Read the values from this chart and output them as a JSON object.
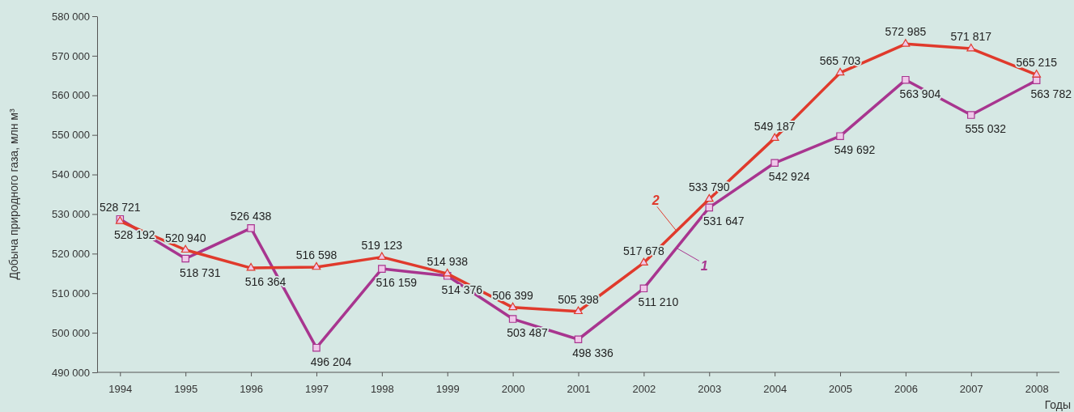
{
  "chart_data": {
    "type": "line",
    "xlabel": "Годы",
    "ylabel": "Добыча природного газа, млн м³",
    "categories": [
      "1994",
      "1995",
      "1996",
      "1997",
      "1998",
      "1999",
      "2000",
      "2001",
      "2002",
      "2003",
      "2004",
      "2005",
      "2006",
      "2007",
      "2008"
    ],
    "series": [
      {
        "name": "1",
        "color": "#a8358f",
        "marker": "square",
        "values": [
          528721,
          518731,
          526438,
          496204,
          516159,
          514376,
          503487,
          498336,
          511210,
          531647,
          542924,
          549692,
          563904,
          555032,
          563782
        ],
        "value_labels": [
          "528 721",
          "518 731",
          "526 438",
          "496 204",
          "516 159",
          "514 376",
          "503 487",
          "498 336",
          "511 210",
          "531 647",
          "542 924",
          "549 692",
          "563 904",
          "555 032",
          "563 782"
        ]
      },
      {
        "name": "2",
        "color": "#e03a2c",
        "marker": "triangle",
        "values": [
          528192,
          520940,
          516364,
          516598,
          519123,
          514938,
          506399,
          505398,
          517678,
          533790,
          549187,
          565703,
          572985,
          571817,
          565215
        ],
        "value_labels": [
          "528 192",
          "520 940",
          "516 364",
          "516 598",
          "519 123",
          "514 938",
          "506 399",
          "505 398",
          "517 678",
          "533 790",
          "549 187",
          "565 703",
          "572 985",
          "571 817",
          "565 215"
        ]
      }
    ],
    "ylim": [
      490000,
      580000
    ],
    "yticks": [
      {
        "value": 490000,
        "label": "490 000"
      },
      {
        "value": 500000,
        "label": "500 000"
      },
      {
        "value": 510000,
        "label": "510 000"
      },
      {
        "value": 520000,
        "label": "520 000"
      },
      {
        "value": 530000,
        "label": "530 000"
      },
      {
        "value": 540000,
        "label": "540 000"
      },
      {
        "value": 550000,
        "label": "550 000"
      },
      {
        "value": 560000,
        "label": "560 000"
      },
      {
        "value": 570000,
        "label": "570 000"
      },
      {
        "value": 580000,
        "label": "580 000"
      }
    ],
    "grid": false,
    "line_style": "solid"
  }
}
